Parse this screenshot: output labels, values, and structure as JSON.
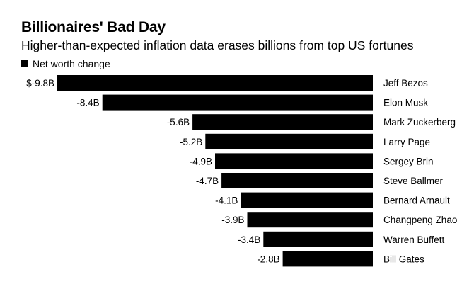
{
  "colors": {
    "bar": "#000000",
    "background": "#ffffff"
  },
  "chart_data": {
    "type": "bar",
    "orientation": "horizontal",
    "title": "Billionaires' Bad Day",
    "subtitle": "Higher-than-expected inflation data erases billions from top US fortunes",
    "legend": [
      "Net worth change"
    ],
    "legend_position": "top-left",
    "grid": false,
    "categories": [
      "Jeff Bezos",
      "Elon Musk",
      "Mark Zuckerberg",
      "Larry Page",
      "Sergey Brin",
      "Steve Ballmer",
      "Bernard Arnault",
      "Changpeng Zhao",
      "Warren Buffett",
      "Bill Gates"
    ],
    "value_labels": [
      "$-9.8B",
      "-8.4B",
      "-5.6B",
      "-5.2B",
      "-4.9B",
      "-4.7B",
      "-4.1B",
      "-3.9B",
      "-3.4B",
      "-2.8B"
    ],
    "series": [
      {
        "name": "Net worth change",
        "values": [
          -9.8,
          -8.4,
          -5.6,
          -5.2,
          -4.9,
          -4.7,
          -4.1,
          -3.9,
          -3.4,
          -2.8
        ]
      }
    ],
    "xlim": [
      -9.8,
      0
    ],
    "units": "billions USD"
  }
}
